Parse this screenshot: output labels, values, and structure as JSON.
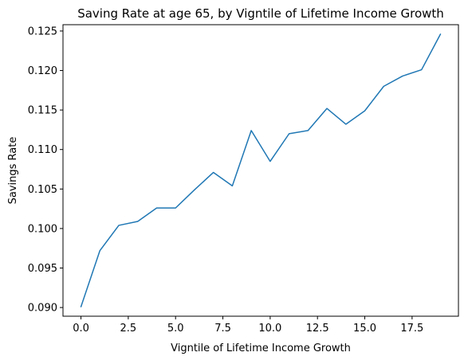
{
  "chart_data": {
    "type": "line",
    "title": "Saving Rate at age 65, by Vigntile of Lifetime Income Growth",
    "xlabel": "Vigntile of Lifetime Income Growth",
    "ylabel": "Savings Rate",
    "xlim": [
      -0.95,
      19.95
    ],
    "ylim": [
      0.0889,
      0.1258
    ],
    "xticks": [
      {
        "value": 0.0,
        "label": "0.0"
      },
      {
        "value": 2.5,
        "label": "2.5"
      },
      {
        "value": 5.0,
        "label": "5.0"
      },
      {
        "value": 7.5,
        "label": "7.5"
      },
      {
        "value": 10.0,
        "label": "10.0"
      },
      {
        "value": 12.5,
        "label": "12.5"
      },
      {
        "value": 15.0,
        "label": "15.0"
      },
      {
        "value": 17.5,
        "label": "17.5"
      }
    ],
    "yticks": [
      {
        "value": 0.09,
        "label": "0.090"
      },
      {
        "value": 0.095,
        "label": "0.095"
      },
      {
        "value": 0.1,
        "label": "0.100"
      },
      {
        "value": 0.105,
        "label": "0.105"
      },
      {
        "value": 0.11,
        "label": "0.110"
      },
      {
        "value": 0.115,
        "label": "0.115"
      },
      {
        "value": 0.12,
        "label": "0.120"
      },
      {
        "value": 0.125,
        "label": "0.125"
      }
    ],
    "grid": false,
    "legend": "none",
    "line_color": "#1f77b4",
    "series": [
      {
        "x": [
          0,
          1,
          2,
          3,
          4,
          5,
          6,
          7,
          8,
          9,
          10,
          11,
          12,
          13,
          14,
          15,
          16,
          17,
          18,
          19
        ],
        "values": [
          0.0901,
          0.0972,
          0.1004,
          0.1009,
          0.1026,
          0.1026,
          0.1049,
          0.1071,
          0.1054,
          0.1124,
          0.1085,
          0.112,
          0.1124,
          0.1152,
          0.1132,
          0.1149,
          0.118,
          0.1193,
          0.1201,
          0.1246
        ]
      }
    ]
  }
}
